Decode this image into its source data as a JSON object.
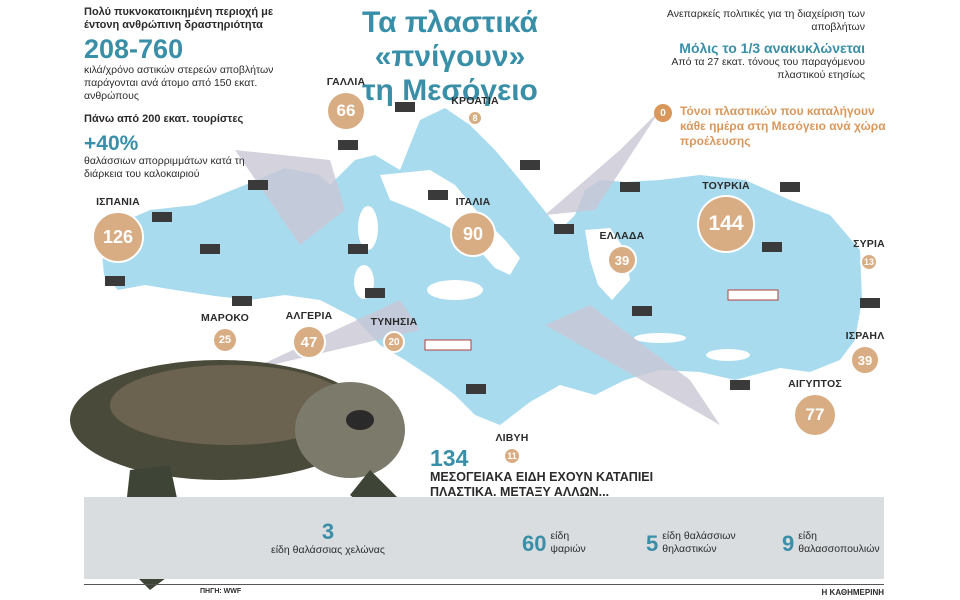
{
  "title_line1": "Τα πλαστικά «πνίγουν»",
  "title_line2": "τη Μεσόγειο",
  "left_stat": {
    "heading": "Πολύ πυκνοκατοικημένη περιοχή με έντονη ανθρώπινη δραστηριότητα",
    "value": "208-760",
    "desc": "κιλά/χρόνο αστικών στερεών αποβλήτων παράγονται ανά άτομο από 150 εκατ. ανθρώπους",
    "heading2": "Πάνω από 200 εκατ. τουρίστες",
    "value2": "+40%",
    "desc2": "θαλάσσιων απορριμμάτων κατά τη διάρκεια του καλοκαιριού"
  },
  "right_stat": {
    "heading": "Ανεπαρκείς πολιτικές για τη διαχείριση των αποβλήτων",
    "value": "Μόλις το 1/3 ανακυκλώνεται",
    "desc": "Από τα 27 εκατ. τόνους του παραγόμενου πλαστικού ετησίως"
  },
  "legend": {
    "marker": "0",
    "text": "Τόνοι πλαστικών που καταλήγουν κάθε ημέρα στη Μεσόγειο ανά χώρα προέλευσης"
  },
  "countries": [
    {
      "name": "ΙΣΠΑΝΙΑ",
      "value": "126"
    },
    {
      "name": "ΓΑΛΛΙΑ",
      "value": "66"
    },
    {
      "name": "ΚΡΟΑΤΙΑ",
      "value": "8"
    },
    {
      "name": "ΙΤΑΛΙΑ",
      "value": "90"
    },
    {
      "name": "ΕΛΛΑΔΑ",
      "value": "39"
    },
    {
      "name": "ΤΟΥΡΚΙΑ",
      "value": "144"
    },
    {
      "name": "ΣΥΡΙΑ",
      "value": "13"
    },
    {
      "name": "ΙΣΡΑΗΛ",
      "value": "39"
    },
    {
      "name": "ΑΙΓΥΠΤΟΣ",
      "value": "77"
    },
    {
      "name": "ΛΙΒΥΗ",
      "value": "11"
    },
    {
      "name": "ΤΥΝΗΣΙΑ",
      "value": "20"
    },
    {
      "name": "ΑΛΓΕΡΙΑ",
      "value": "47"
    },
    {
      "name": "ΜΑΡΟΚΟ",
      "value": "25"
    }
  ],
  "species": {
    "total": "134",
    "text": "ΜΕΣΟΓΕΙΑΚΑ ΕΙΔΗ ΕΧΟΥΝ ΚΑΤΑΠΙΕΙ ΠΛΑΣΤΙΚΑ. ΜΕΤΑΞΥ ΑΛΛΩΝ...",
    "turtles": {
      "value": "3",
      "label": "είδη θαλάσσιας χελώνας"
    },
    "fish": {
      "value": "60",
      "label": "είδη ψαριών"
    },
    "mammals": {
      "value": "5",
      "label": "είδη θαλάσσιων θηλαστικών"
    },
    "birds": {
      "value": "9",
      "label": "είδη θαλασσοπουλιών"
    }
  },
  "source": "ΠΗΓΗ: WWF",
  "publisher": "Η ΚΑΘΗΜΕΡΙΝΗ",
  "colors": {
    "sea": "#a9dbef",
    "accent": "#3a8fa8",
    "bubble": "#d9ad83",
    "legend": "#d9975b"
  }
}
